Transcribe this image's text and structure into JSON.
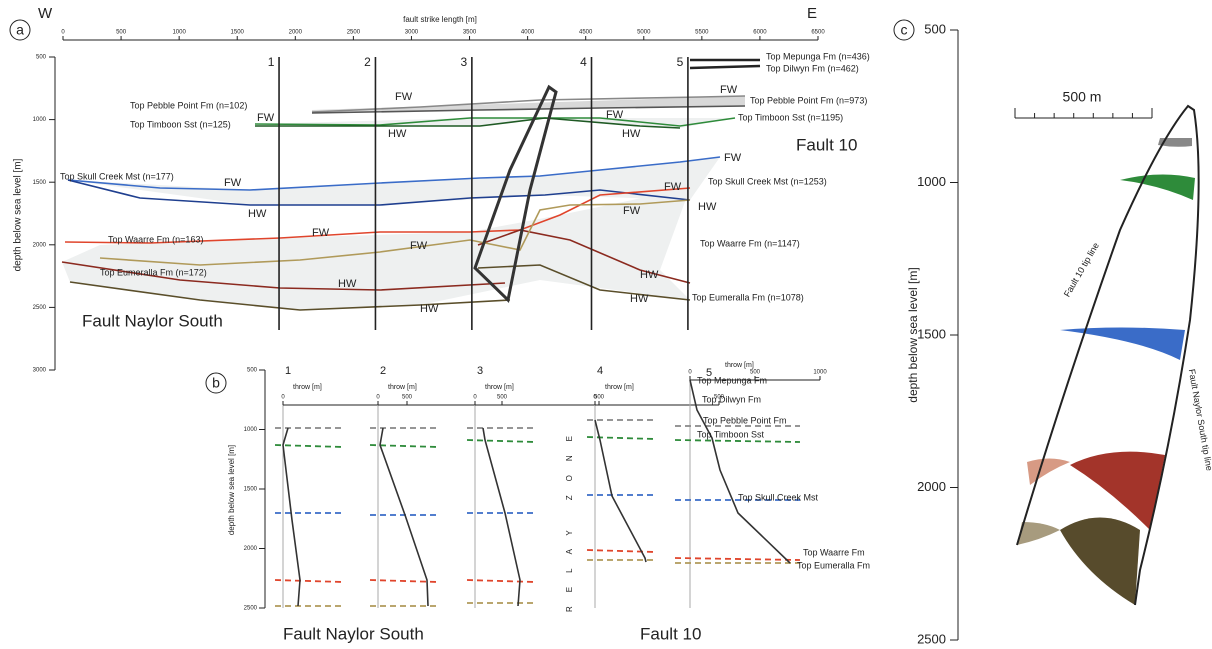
{
  "panel_a": {
    "label": "a",
    "west": "W",
    "east": "E",
    "x_title": "fault strike length [m]",
    "xlim": [
      0,
      6500
    ],
    "xticks": [
      0,
      500,
      1000,
      1500,
      2000,
      2500,
      3000,
      3500,
      4000,
      4500,
      5000,
      5500,
      6000,
      6500
    ],
    "y_title": "depth below sea level [m]",
    "ylim": [
      500,
      3000
    ],
    "yticks": [
      500,
      1000,
      1500,
      2000,
      2500,
      3000
    ],
    "sections": [
      {
        "label": "1",
        "x": 1860
      },
      {
        "label": "2",
        "x": 2690
      },
      {
        "label": "3",
        "x": 3520
      },
      {
        "label": "4",
        "x": 4550
      },
      {
        "label": "5",
        "x": 5380
      }
    ],
    "horizons_left": [
      "Top Pebble Point Fm (n=102)",
      "Top Timboon Sst (n=125)",
      "Top Skull Creek Mst (n=177)",
      "Top Waarre Fm (n=163)",
      "Top Eumeralla Fm (n=172)"
    ],
    "horizons_right": [
      "Top Mepunga Fm (n=436)",
      "Top Dilwyn Fm (n=462)",
      "Top Pebble Point Fm (n=973)",
      "Top Timboon Sst (n=1195)",
      "Top Skull Creek Mst (n=1253)",
      "Top Waarre Fm (n=1147)",
      "Top Eumeralla Fm (n=1078)"
    ],
    "block_labels": [
      "FW",
      "FW",
      "FW",
      "HW",
      "FW",
      "HW",
      "FW",
      "HW",
      "FW",
      "HW",
      "FW",
      "HW",
      "FW",
      "HW",
      "FW",
      "HW",
      "FW",
      "HW"
    ],
    "faults": [
      "Fault Naylor South",
      "Fault 10"
    ]
  },
  "panel_b": {
    "label": "b",
    "y_title": "depth below sea level [m]",
    "ylim": [
      500,
      2500
    ],
    "yticks": [
      500,
      1000,
      1500,
      2000,
      2500
    ],
    "profiles": [
      {
        "label": "1",
        "x_title": "throw [m]",
        "xlim": [
          0,
          500
        ],
        "xticks": [
          0,
          500
        ]
      },
      {
        "label": "2",
        "x_title": "throw [m]",
        "xlim": [
          0,
          500
        ],
        "xticks": [
          0,
          500
        ]
      },
      {
        "label": "3",
        "x_title": "throw [m]",
        "xlim": [
          0,
          500
        ],
        "xticks": [
          0,
          500
        ]
      },
      {
        "label": "4",
        "x_title": "throw [m]",
        "xlim": [
          0,
          500
        ],
        "xticks": [
          0,
          500
        ]
      },
      {
        "label": "5",
        "x_title": "throw [m]",
        "xlim": [
          0,
          1000
        ],
        "xticks": [
          0,
          500,
          1000
        ]
      }
    ],
    "relay_zone": "RELAY ZONE",
    "horizon_labels": [
      "Top Mepunga Fm",
      "Top Dilwyn Fm",
      "Top Pebble Point Fm",
      "Top Timboon Sst",
      "Top Skull Creek Mst",
      "Top Waarre Fm",
      "Top Eumeralla Fm"
    ],
    "faults": [
      "Fault Naylor South",
      "Fault 10"
    ]
  },
  "panel_c": {
    "label": "c",
    "y_title": "depth below sea level [m]",
    "ylim": [
      500,
      2500
    ],
    "yticks": [
      500,
      1000,
      1500,
      2000,
      2500
    ],
    "scale_bar": "500 m",
    "tip_lines": [
      "Fault 10 tip line",
      "Fault Naylor South tip line"
    ]
  }
}
